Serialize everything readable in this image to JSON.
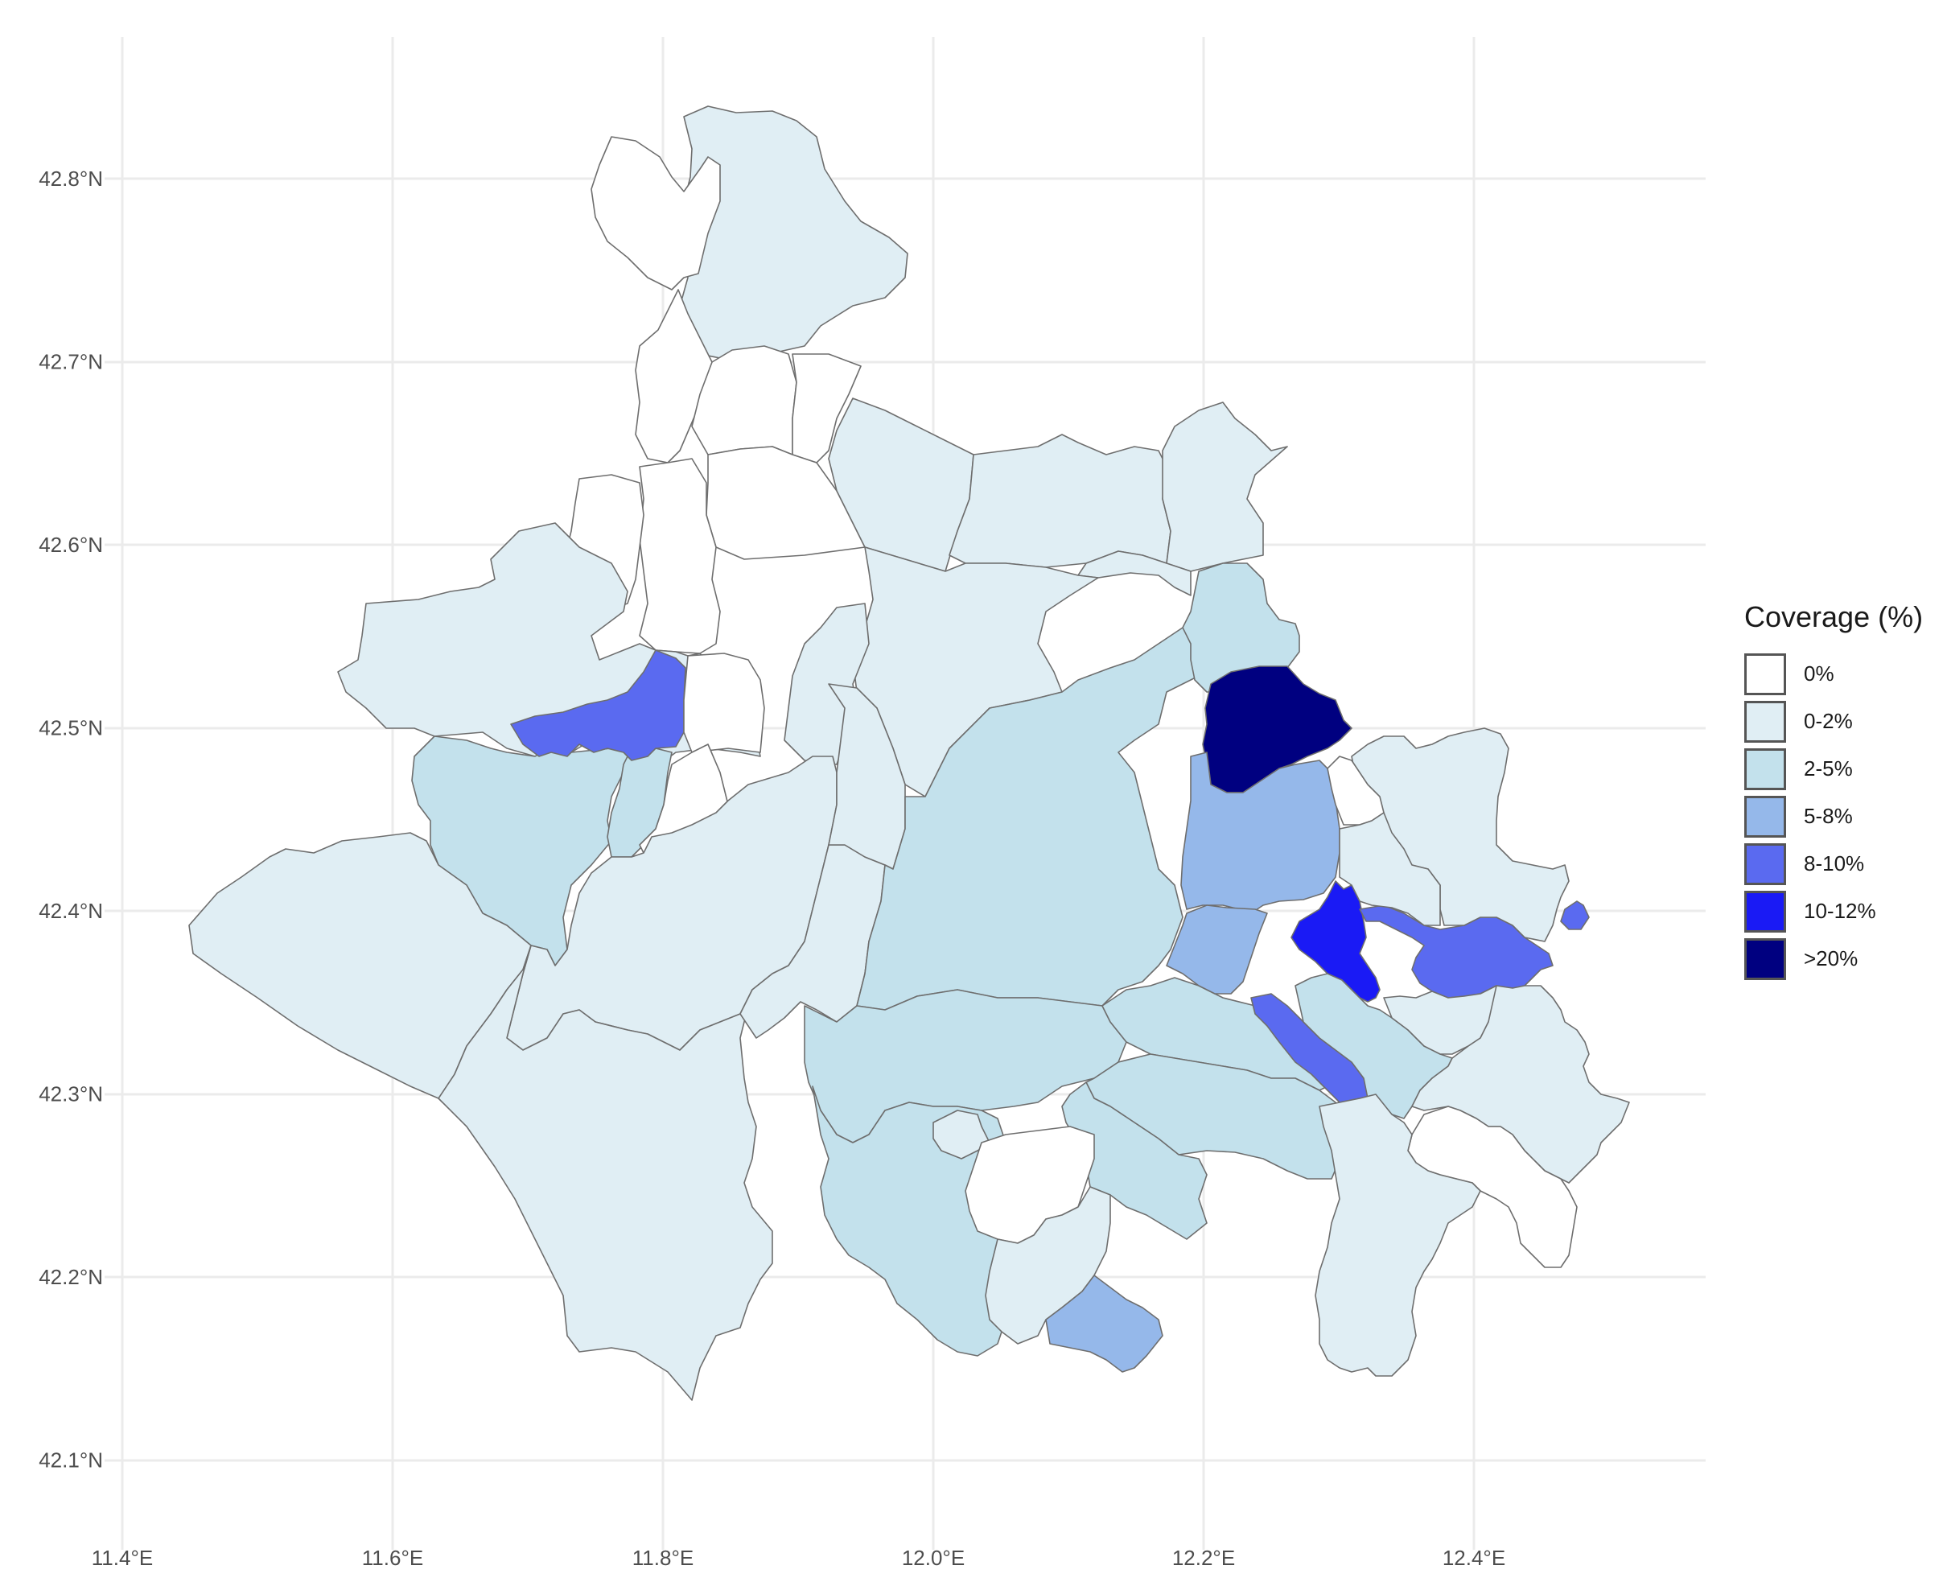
{
  "map": {
    "lon_ticks": [
      "11.4°E",
      "11.6°E",
      "11.8°E",
      "12.0°E",
      "12.2°E",
      "12.4°E"
    ],
    "lat_ticks": [
      "42.8°N",
      "42.7°N",
      "42.6°N",
      "42.5°N",
      "42.4°N",
      "42.3°N",
      "42.2°N",
      "42.1°N"
    ],
    "lon_values": [
      11.4,
      11.6,
      11.8,
      12.0,
      12.2,
      12.4
    ],
    "lat_values": [
      42.8,
      42.7,
      42.6,
      42.5,
      42.4,
      42.3,
      42.2,
      42.1
    ],
    "lon_range": [
      11.4,
      12.6
    ],
    "lat_range": [
      42.05,
      42.88
    ]
  },
  "legend": {
    "title": "Coverage (%)",
    "items": [
      {
        "label": "0%",
        "color": "#ffffff"
      },
      {
        "label": "0-2%",
        "color": "#e0eef4"
      },
      {
        "label": "2-5%",
        "color": "#c3e1ec"
      },
      {
        "label": "5-8%",
        "color": "#95b8ea"
      },
      {
        "label": "8-10%",
        "color": "#5a6af0"
      },
      {
        "label": "10-12%",
        "color": "#1a1af5"
      },
      {
        "label": ">20%",
        "color": "#000080"
      }
    ]
  },
  "regions": [
    {
      "id": "north-tip",
      "class": "0-2%"
    },
    {
      "id": "north-west-a",
      "class": "0%"
    },
    {
      "id": "north-mid-a",
      "class": "0%"
    },
    {
      "id": "north-mid-b",
      "class": "0%"
    },
    {
      "id": "north-mid-c",
      "class": "0%"
    },
    {
      "id": "north-mid-d",
      "class": "0%"
    },
    {
      "id": "north-mid-e",
      "class": "0%"
    },
    {
      "id": "north-mid-f",
      "class": "0%"
    },
    {
      "id": "north-east-a",
      "class": "0-2%"
    },
    {
      "id": "north-east-b",
      "class": "0-2%"
    },
    {
      "id": "north-east-c",
      "class": "0-2%"
    },
    {
      "id": "north-east-d",
      "class": "0-2%"
    },
    {
      "id": "west-big",
      "class": "0-2%"
    },
    {
      "id": "west-mid",
      "class": "0-2%"
    },
    {
      "id": "west-ridge",
      "class": "0-2%"
    },
    {
      "id": "lake-east",
      "class": "0-2%"
    },
    {
      "id": "coast-strip",
      "class": "0-2%"
    },
    {
      "id": "center-north",
      "class": "0-2%"
    },
    {
      "id": "center-top",
      "class": "0-2%"
    },
    {
      "id": "west-upper",
      "class": "0-2%"
    },
    {
      "id": "west-inner",
      "class": "2-5%"
    },
    {
      "id": "west-inner-b",
      "class": "2-5%"
    },
    {
      "id": "lake-basin",
      "class": "0%"
    },
    {
      "id": "west-hot",
      "class": "8-10%"
    },
    {
      "id": "west-small-0",
      "class": "0%"
    },
    {
      "id": "center-main",
      "class": "2-5%"
    },
    {
      "id": "center-south-a",
      "class": "2-5%"
    },
    {
      "id": "center-south-b",
      "class": "2-5%"
    },
    {
      "id": "center-south-c",
      "class": "2-5%"
    },
    {
      "id": "center-south-d",
      "class": "2-5%"
    },
    {
      "id": "center-south-e",
      "class": "2-5%"
    },
    {
      "id": "south-a",
      "class": "0-2%"
    },
    {
      "id": "south-b",
      "class": "0-2%"
    },
    {
      "id": "south-hole",
      "class": "0%"
    },
    {
      "id": "south-c",
      "class": "5-8%"
    },
    {
      "id": "east-top",
      "class": "2-5%"
    },
    {
      "id": "east-hot",
      "class": ">20%"
    },
    {
      "id": "east-mid",
      "class": "5-8%"
    },
    {
      "id": "east-small-5",
      "class": "5-8%"
    },
    {
      "id": "east-strip",
      "class": "8-10%"
    },
    {
      "id": "east-blue",
      "class": "10-12%"
    },
    {
      "id": "east-arm",
      "class": "8-10%"
    },
    {
      "id": "east-dot",
      "class": "8-10%"
    },
    {
      "id": "east-far",
      "class": "0-2%"
    },
    {
      "id": "east-far-b",
      "class": "0-2%"
    },
    {
      "id": "east-white-a",
      "class": "0%"
    },
    {
      "id": "east-white-b",
      "class": "0%"
    },
    {
      "id": "east-south",
      "class": "0-2%"
    },
    {
      "id": "east-mid-b",
      "class": "2-5%"
    },
    {
      "id": "east-mid-c",
      "class": "0-2%"
    },
    {
      "id": "east-west-a",
      "class": "0-2%"
    }
  ]
}
